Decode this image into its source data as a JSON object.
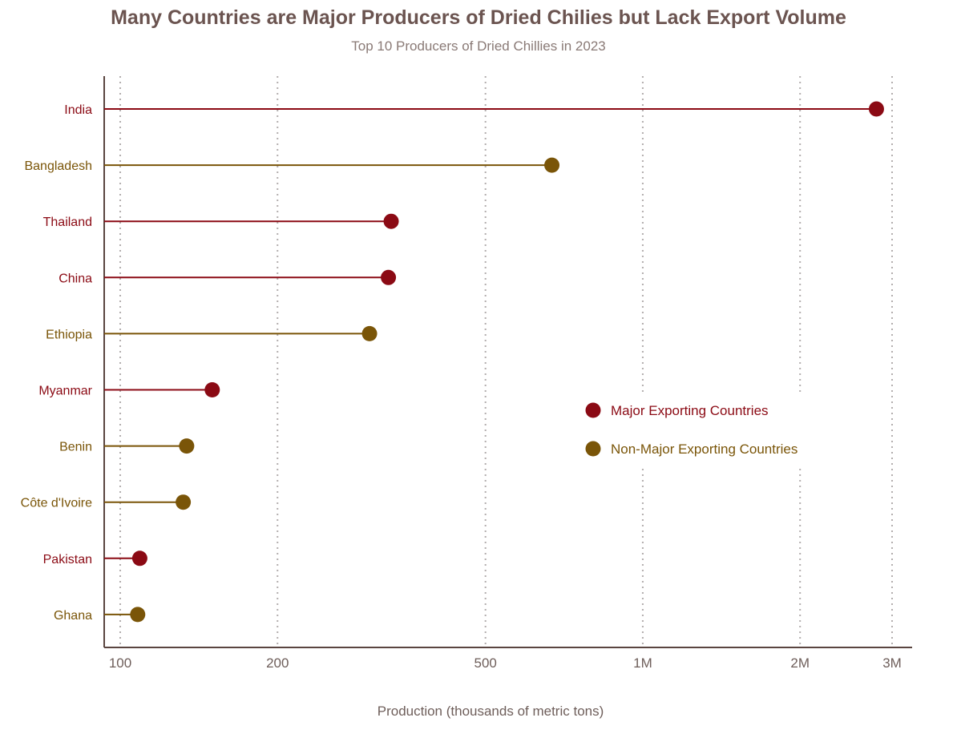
{
  "chart_data": {
    "type": "lollipop",
    "title": "Many Countries are Major Producers of Dried Chilies but Lack Export Volume",
    "subtitle": "Top 10 Producers of Dried Chillies in 2023",
    "xlabel": "Production (thousands of metric tons)",
    "x_scale": "log",
    "xlim": [
      100,
      3000
    ],
    "x_ticks": [
      {
        "value": 100,
        "label": "100"
      },
      {
        "value": 200,
        "label": "200"
      },
      {
        "value": 500,
        "label": "500"
      },
      {
        "value": 1000,
        "label": "1M"
      },
      {
        "value": 2000,
        "label": "2M"
      },
      {
        "value": 3000,
        "label": "3M"
      }
    ],
    "grid": true,
    "legend_position": "center-right",
    "series": [
      {
        "name": "Major Exporting Countries",
        "color": "#8b0a14"
      },
      {
        "name": "Non-Major Exporting Countries",
        "color": "#7a5508"
      }
    ],
    "points": [
      {
        "country": "India",
        "value": 2800,
        "series": "Major Exporting Countries"
      },
      {
        "country": "Bangladesh",
        "value": 670,
        "series": "Non-Major Exporting Countries"
      },
      {
        "country": "Thailand",
        "value": 330,
        "series": "Major Exporting Countries"
      },
      {
        "country": "China",
        "value": 326,
        "series": "Major Exporting Countries"
      },
      {
        "country": "Ethiopia",
        "value": 300,
        "series": "Non-Major Exporting Countries"
      },
      {
        "country": "Myanmar",
        "value": 150,
        "series": "Major Exporting Countries"
      },
      {
        "country": "Benin",
        "value": 134,
        "series": "Non-Major Exporting Countries"
      },
      {
        "country": "Côte d'Ivoire",
        "value": 132,
        "series": "Non-Major Exporting Countries"
      },
      {
        "country": "Pakistan",
        "value": 109,
        "series": "Major Exporting Countries"
      },
      {
        "country": "Ghana",
        "value": 108,
        "series": "Non-Major Exporting Countries"
      }
    ]
  }
}
